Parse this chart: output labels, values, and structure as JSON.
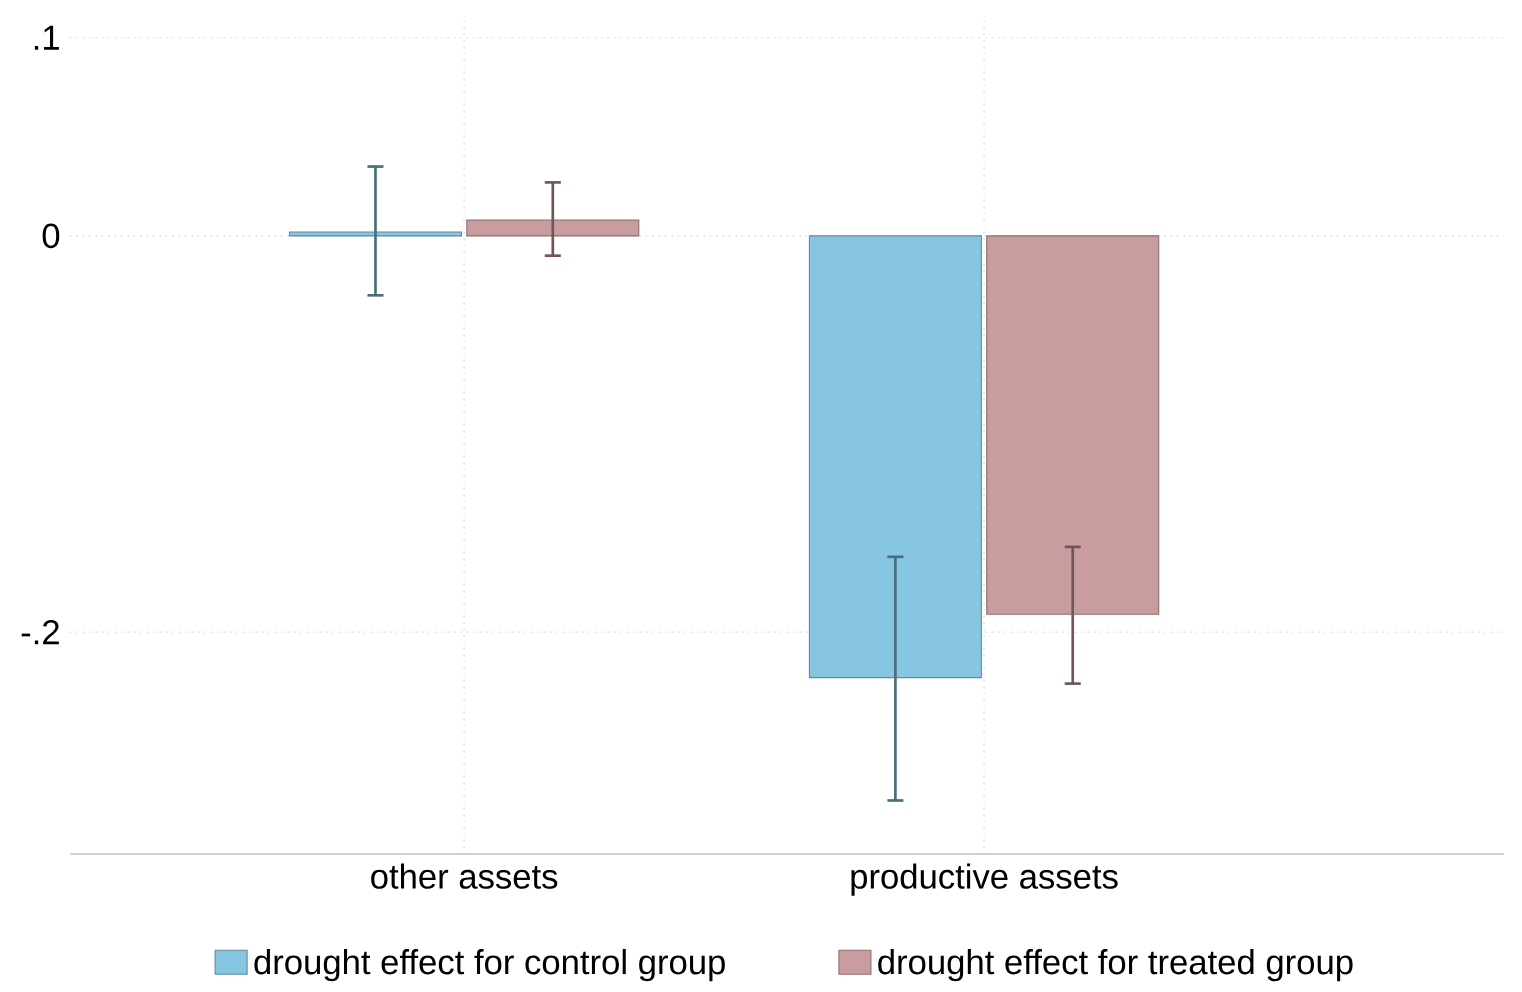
{
  "chart_data": {
    "type": "bar",
    "categories": [
      "other assets",
      "productive assets"
    ],
    "series": [
      {
        "name": "drought effect for control group",
        "color": "#87c6e0",
        "values": [
          0.002,
          -0.223
        ],
        "errors": [
          [
            -0.03,
            0.035
          ],
          [
            -0.285,
            -0.162
          ]
        ]
      },
      {
        "name": "drought effect for treated group",
        "color": "#c99ca0",
        "values": [
          0.008,
          -0.191
        ],
        "errors": [
          [
            -0.01,
            0.027
          ],
          [
            -0.226,
            -0.157
          ]
        ]
      }
    ],
    "ylim": [
      -0.312,
      0.111
    ],
    "yticks": [
      {
        "value": 0.1,
        "label": ".1"
      },
      0,
      {
        "value": -0.2,
        "label": "-.2"
      }
    ],
    "grid": true,
    "legend": "bottom"
  }
}
